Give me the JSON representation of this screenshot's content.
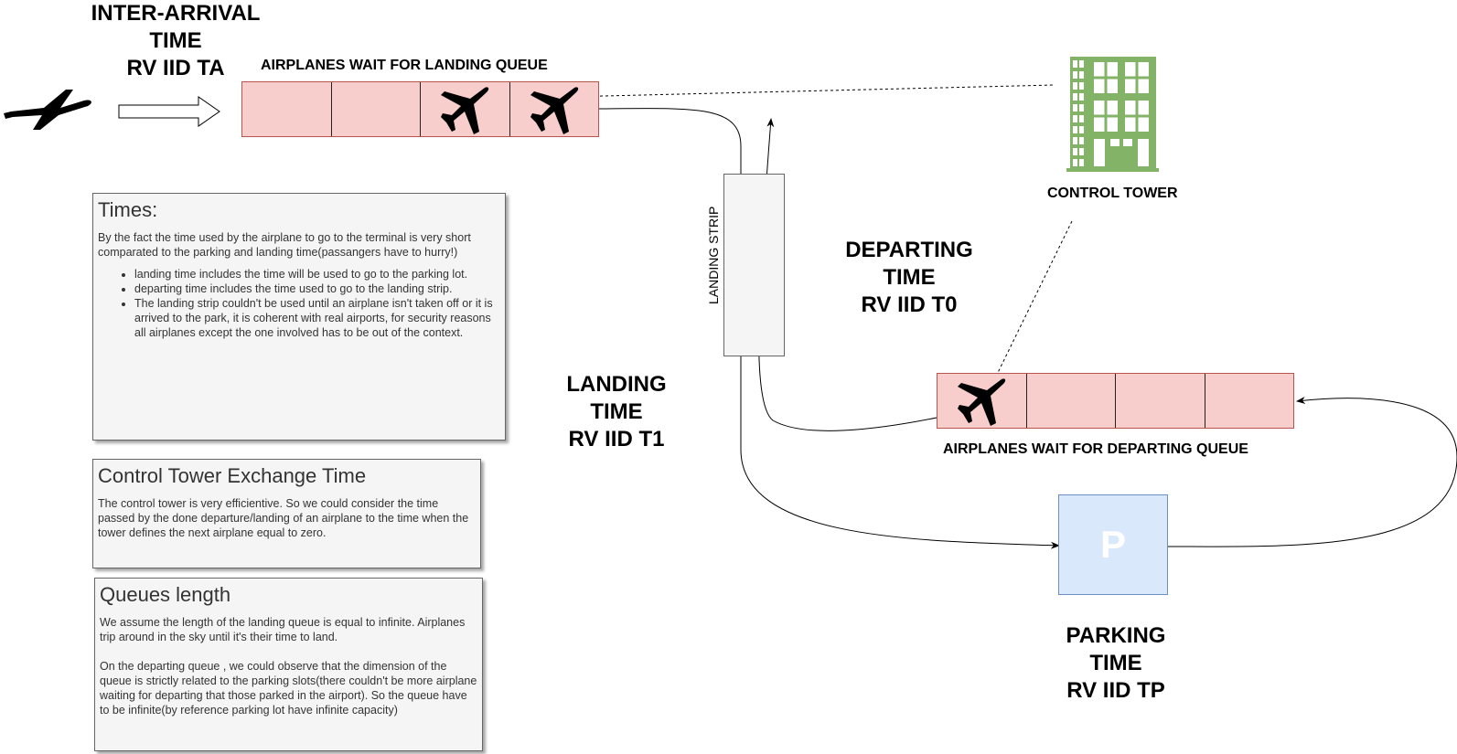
{
  "inter_arrival_label": [
    "INTER-ARRIVAL",
    "TIME",
    "RV IID TA"
  ],
  "landing_queue_caption": "AIRPLANES WAIT FOR LANDING QUEUE",
  "control_tower_caption": "CONTROL TOWER",
  "landing_strip_label": "LANDING STRIP",
  "departing_time_label": [
    "DEPARTING",
    "TIME",
    "RV IID T0"
  ],
  "landing_time_label": [
    "LANDING",
    "TIME",
    "RV IID T1"
  ],
  "departing_queue_caption": "AIRPLANES WAIT FOR DEPARTING QUEUE",
  "parking_symbol": "P",
  "parking_time_label": [
    "PARKING",
    "TIME",
    "RV IID TP"
  ],
  "landing_queue": {
    "slots": 4,
    "occupied_slots": [
      3,
      4
    ]
  },
  "departing_queue": {
    "slots": 4,
    "occupied_slots": [
      1
    ]
  },
  "notes": {
    "times": {
      "title": "Times:",
      "intro": "By the fact the time used by the airplane to go to the terminal is very short comparated to the parking and landing time(passangers have to hurry!)",
      "bullets": [
        "landing time includes the time will be used to go to the parking lot.",
        "departing time includes the time used to go to the landing strip.",
        "The landing strip couldn't be used until an airplane isn't taken off or it is arrived to the park, it is coherent with real airports, for security reasons all airplanes except the one involved has to be out of the context."
      ]
    },
    "exchange": {
      "title": "Control Tower Exchange Time",
      "body": "The control tower is very efficientive. So we could consider the time passed by the done departure/landing of an airplane to the time when the tower  defines the next airplane equal to zero."
    },
    "queues": {
      "title": "Queues length",
      "body1": "We assume the length of the landing queue is equal to infinite. Airplanes trip around in the sky until it's their time to land.",
      "body2": "On the departing queue , we could observe that the dimension of the queue is strictly related to the parking slots(there couldn't be more airplane waiting for departing that those parked in the airport). So the queue have to be infinite(by reference parking lot have infinite capacity)"
    }
  },
  "colors": {
    "queue_fill": "#f8cecc",
    "queue_border": "#b85450",
    "note_fill": "#f5f5f5",
    "parking_fill": "#dae8fc",
    "parking_border": "#6c8ebf",
    "tower_green": "#82b366"
  },
  "icons": [
    "airplane-icon",
    "control-tower-building-icon",
    "right-arrow-icon"
  ]
}
